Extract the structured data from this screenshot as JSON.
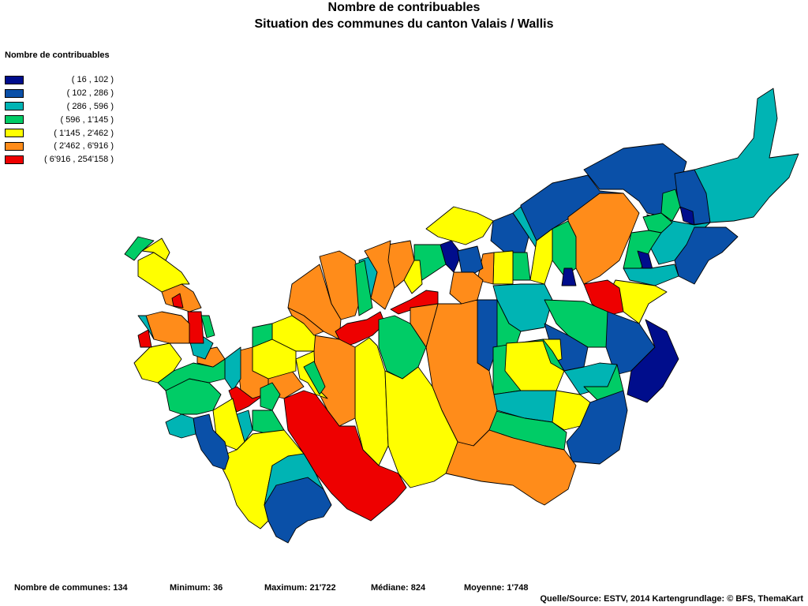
{
  "title": "Nombre de contribuables",
  "subtitle": "Situation des communes du canton Valais / Wallis",
  "legend": {
    "title": "Nombre de contribuables",
    "classes": [
      {
        "label": "( 16 , 102 )",
        "color": "#000d8c"
      },
      {
        "label": "( 102 , 286 )",
        "color": "#0a50a8"
      },
      {
        "label": "( 286 , 596 )",
        "color": "#00b4b4"
      },
      {
        "label": "( 596 , 1'145 )",
        "color": "#00cc66"
      },
      {
        "label": "( 1'145 , 2'462 )",
        "color": "#ffff00"
      },
      {
        "label": "( 2'462 , 6'916 )",
        "color": "#ff8c1a"
      },
      {
        "label": "( 6'916 , 254'158 )",
        "color": "#ee0000"
      }
    ]
  },
  "stats": {
    "communes": "Nombre de communes: 134",
    "minimum": "Minimum: 36",
    "maximum": "Maximum: 21'722",
    "mediane": "Médiane: 824",
    "moyenne": "Moyenne: 1'748"
  },
  "source": "Quelle/Source: ESTV, 2014 Kartengrundlage: © BFS, ThemaKart"
}
